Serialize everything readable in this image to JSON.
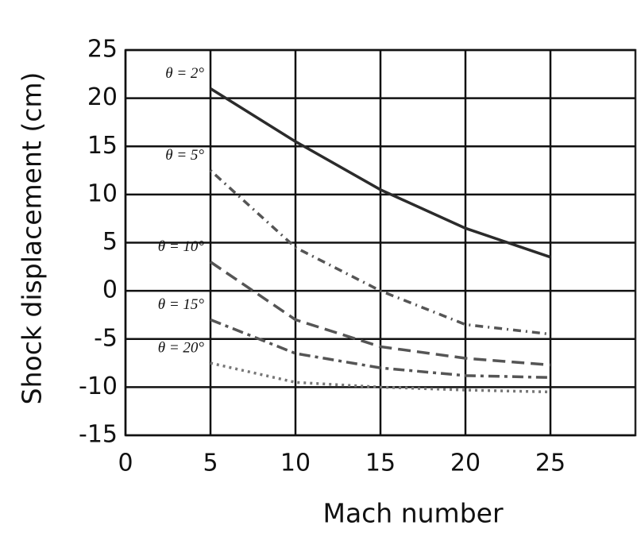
{
  "chart_data": {
    "type": "line",
    "xlabel": "Mach number",
    "ylabel": "Shock displacement (cm)",
    "xlim": [
      0,
      30
    ],
    "ylim": [
      -15,
      25
    ],
    "xticks": [
      0,
      5,
      10,
      15,
      20,
      25
    ],
    "yticks": [
      -15,
      -10,
      -5,
      0,
      5,
      10,
      15,
      20,
      25
    ],
    "grid": true,
    "x": [
      5,
      10,
      15,
      20,
      25
    ],
    "series": [
      {
        "name": "θ = 2°",
        "color": "#2b2b2b",
        "dash": "none",
        "values": [
          21,
          15.5,
          10.5,
          6.5,
          3.5
        ]
      },
      {
        "name": "θ = 5°",
        "color": "#555555",
        "dash": "2 6 10 6",
        "values": [
          12.5,
          4.5,
          0,
          -3.5,
          -4.5
        ]
      },
      {
        "name": "θ = 10°",
        "color": "#555555",
        "dash": "16 8",
        "values": [
          3,
          -3,
          -5.8,
          -7,
          -7.7
        ]
      },
      {
        "name": "θ = 15°",
        "color": "#555555",
        "dash": "14 6 4 6",
        "values": [
          -3,
          -6.5,
          -8,
          -8.8,
          -9
        ]
      },
      {
        "name": "θ = 20°",
        "color": "#777777",
        "dash": "3 5",
        "values": [
          -7.5,
          -9.5,
          -10,
          -10.3,
          -10.5
        ]
      }
    ]
  }
}
